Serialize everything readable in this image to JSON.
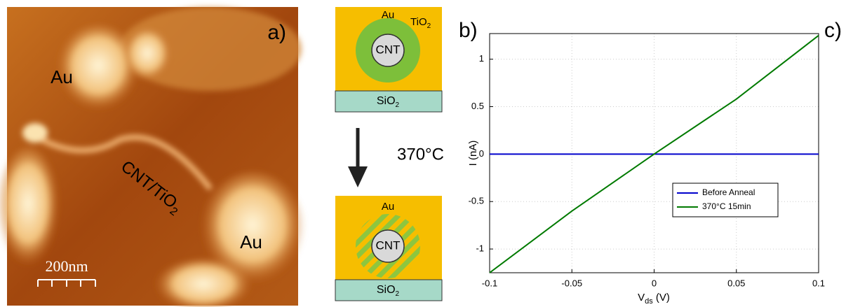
{
  "panel_a": {
    "label": "a)",
    "au_top": "Au",
    "au_bottom": "Au",
    "cnt_label": {
      "main": "CNT/TiO",
      "sub": "2"
    },
    "scale_bar": "200nm"
  },
  "panel_b": {
    "label": "b)",
    "top": {
      "au": "Au",
      "tio2": {
        "main": "TiO",
        "sub": "2"
      },
      "cnt": "CNT",
      "sio2": {
        "main": "SiO",
        "sub": "2"
      }
    },
    "anneal": "370°C",
    "bottom": {
      "au": "Au",
      "cnt": "CNT",
      "sio2": {
        "main": "SiO",
        "sub": "2"
      }
    }
  },
  "chart_data": {
    "type": "line",
    "label": "c)",
    "x": [
      -0.1,
      -0.05,
      0,
      0.05,
      0.1
    ],
    "series": [
      {
        "name": "Before Anneal",
        "color": "#0000cc",
        "values": [
          0,
          0,
          0,
          0,
          0
        ]
      },
      {
        "name": "370°C 15min",
        "color": "#007a00",
        "values": [
          -1.25,
          -0.6,
          0,
          0.58,
          1.25
        ]
      }
    ],
    "xlabel": {
      "main": "V",
      "sub": "ds",
      "unit": " (V)"
    },
    "ylabel": "I (nA)",
    "xlim": [
      -0.1,
      0.1
    ],
    "ylim": [
      -1.25,
      1.27
    ],
    "xticks": [
      -0.1,
      -0.05,
      0,
      0.05,
      0.1
    ],
    "yticks": [
      -1,
      -0.5,
      0,
      0.5,
      1
    ],
    "grid": true,
    "legend": "lower right"
  }
}
